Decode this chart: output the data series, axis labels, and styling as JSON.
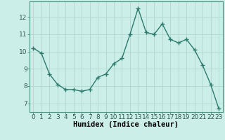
{
  "x": [
    0,
    1,
    2,
    3,
    4,
    5,
    6,
    7,
    8,
    9,
    10,
    11,
    12,
    13,
    14,
    15,
    16,
    17,
    18,
    19,
    20,
    21,
    22,
    23
  ],
  "y": [
    10.2,
    9.9,
    8.7,
    8.1,
    7.8,
    7.8,
    7.7,
    7.8,
    8.5,
    8.7,
    9.3,
    9.6,
    11.0,
    12.5,
    11.1,
    11.0,
    11.6,
    10.7,
    10.5,
    10.7,
    10.1,
    9.2,
    8.1,
    6.7
  ],
  "line_color": "#2e7b6e",
  "marker": "+",
  "marker_size": 4,
  "background_color": "#cceee8",
  "grid_color": "#b0d8d0",
  "xlabel": "Humidex (Indice chaleur)",
  "ylim": [
    6.5,
    12.9
  ],
  "xlim": [
    -0.5,
    23.5
  ],
  "yticks": [
    7,
    8,
    9,
    10,
    11,
    12
  ],
  "xticks": [
    0,
    1,
    2,
    3,
    4,
    5,
    6,
    7,
    8,
    9,
    10,
    11,
    12,
    13,
    14,
    15,
    16,
    17,
    18,
    19,
    20,
    21,
    22,
    23
  ],
  "tick_fontsize": 6.5,
  "xlabel_fontsize": 7.5,
  "linewidth": 1.0,
  "marker_color": "#2e7b6e",
  "spine_color": "#4a9080"
}
